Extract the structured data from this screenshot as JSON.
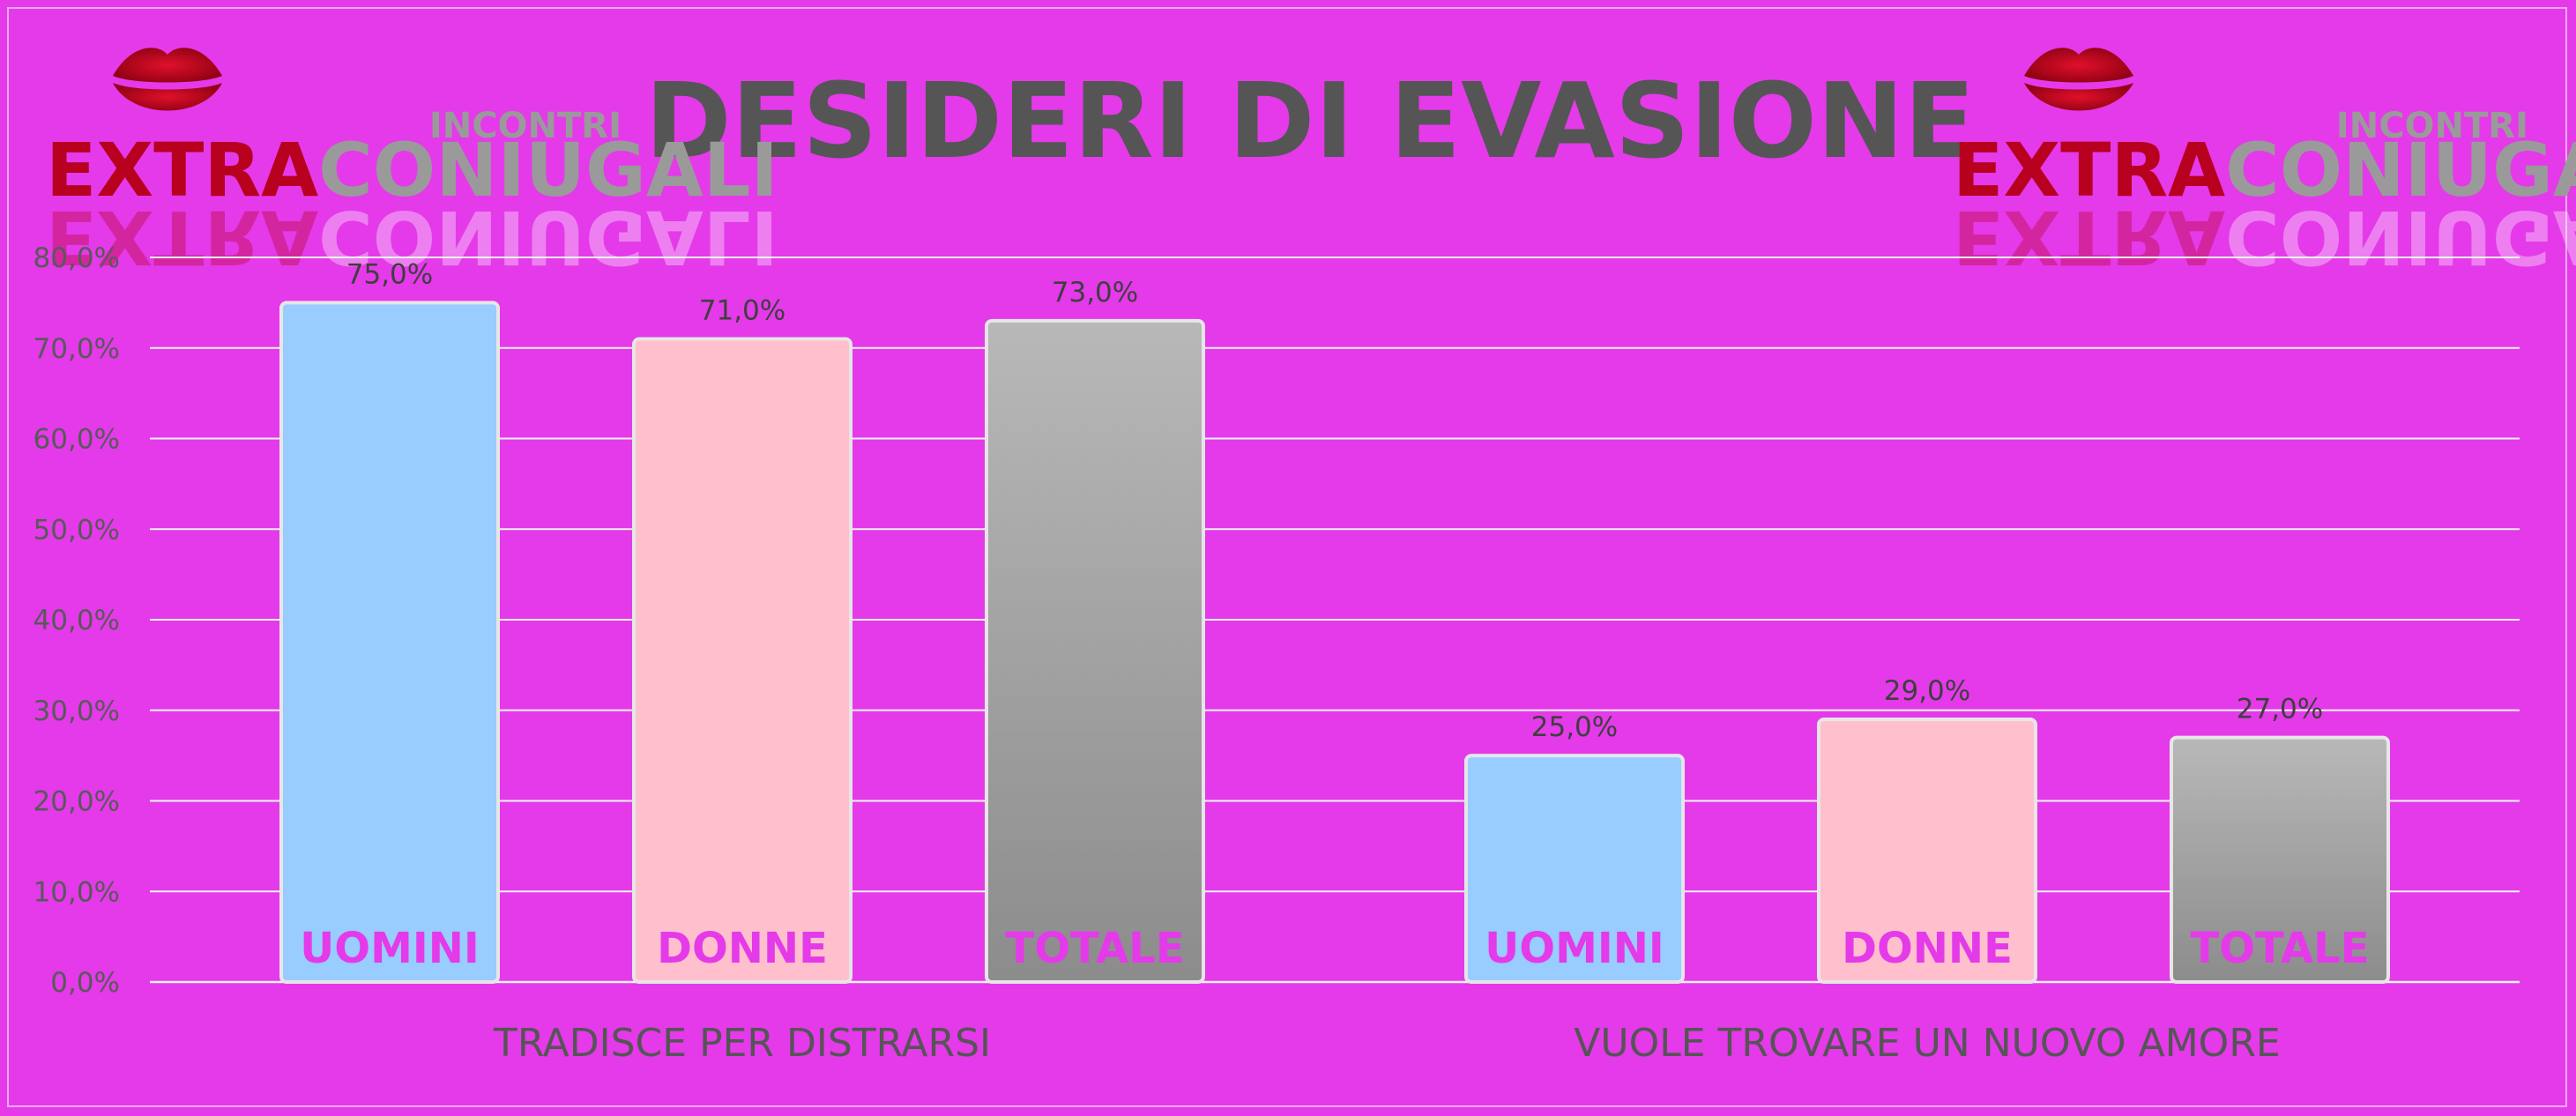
{
  "chart_data": {
    "type": "bar",
    "title": "DESIDERI DI EVASIONE",
    "categories": [
      "TRADISCE PER DISTRARSI",
      "VUOLE TROVARE UN NUOVO AMORE"
    ],
    "series": [
      {
        "name": "UOMINI",
        "values": [
          75.0,
          25.0
        ],
        "color": "#99ccff"
      },
      {
        "name": "DONNE",
        "values": [
          71.0,
          29.0
        ],
        "color": "#ffbfcc"
      },
      {
        "name": "TOTALE",
        "values": [
          73.0,
          27.0
        ],
        "color": "#a3a3a3"
      }
    ],
    "data_labels": [
      [
        "75,0%",
        "25,0%"
      ],
      [
        "71,0%",
        "29,0%"
      ],
      [
        "73,0%",
        "27,0%"
      ]
    ],
    "yticks": [
      "0,0%",
      "10,0%",
      "20,0%",
      "30,0%",
      "40,0%",
      "50,0%",
      "60,0%",
      "70,0%",
      "80,0%"
    ],
    "ylim": [
      0,
      80
    ],
    "grid": true,
    "series_labels_inside_bars": true
  },
  "logo": {
    "small_text": "INCONTRI",
    "part1": "EXTRA",
    "part2": "CONIUGALI"
  },
  "colors": {
    "background": "#e43ae9",
    "title": "#555555",
    "bar_label": "#e43ae9",
    "logo_red": "#b8001f",
    "logo_gray": "#9a9a9a"
  }
}
